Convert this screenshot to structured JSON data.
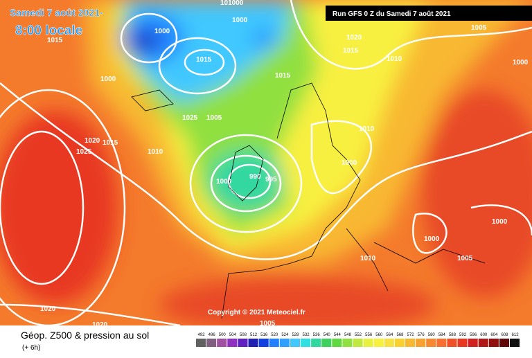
{
  "header": {
    "date": "Samedi 7 août 2021-",
    "time": "8:00 locale",
    "run": "Run GFS 0 Z du Samedi 7 août 2021"
  },
  "copyright": "Copyright © 2021 Meteociel.fr",
  "footer": {
    "title": "Géop. Z500 & pression au sol",
    "lead": "(+ 6h)"
  },
  "isobar_labels": [
    "1000",
    "1015",
    "101000",
    "1000",
    "1000",
    "1025",
    "1015",
    "1015",
    "1020",
    "1015",
    "1010",
    "1005",
    "1000",
    "1005",
    "1010",
    "1020",
    "1015",
    "1025",
    "1010",
    "1000",
    "1000",
    "990",
    "995",
    "1000",
    "1000",
    "1010",
    "1005",
    "1020",
    "1020",
    "1005"
  ],
  "scale": {
    "values": [
      492,
      496,
      500,
      504,
      508,
      512,
      516,
      520,
      524,
      528,
      532,
      536,
      540,
      544,
      548,
      552,
      556,
      560,
      564,
      568,
      572,
      576,
      580,
      584,
      588,
      592,
      596,
      600,
      604,
      608,
      612
    ],
    "colors": [
      "#606060",
      "#806080",
      "#a050a0",
      "#9030c0",
      "#6020c0",
      "#2020b0",
      "#1040e0",
      "#2080ff",
      "#30a0ff",
      "#40c8ff",
      "#30e0e0",
      "#30d8a0",
      "#40d060",
      "#60d840",
      "#90e040",
      "#c0e840",
      "#e8f040",
      "#f8f040",
      "#f8e040",
      "#f8d030",
      "#f8b830",
      "#f8a030",
      "#f88830",
      "#f87030",
      "#f05028",
      "#e83820",
      "#d02020",
      "#b01818",
      "#901010",
      "#600808",
      "#101010"
    ]
  }
}
